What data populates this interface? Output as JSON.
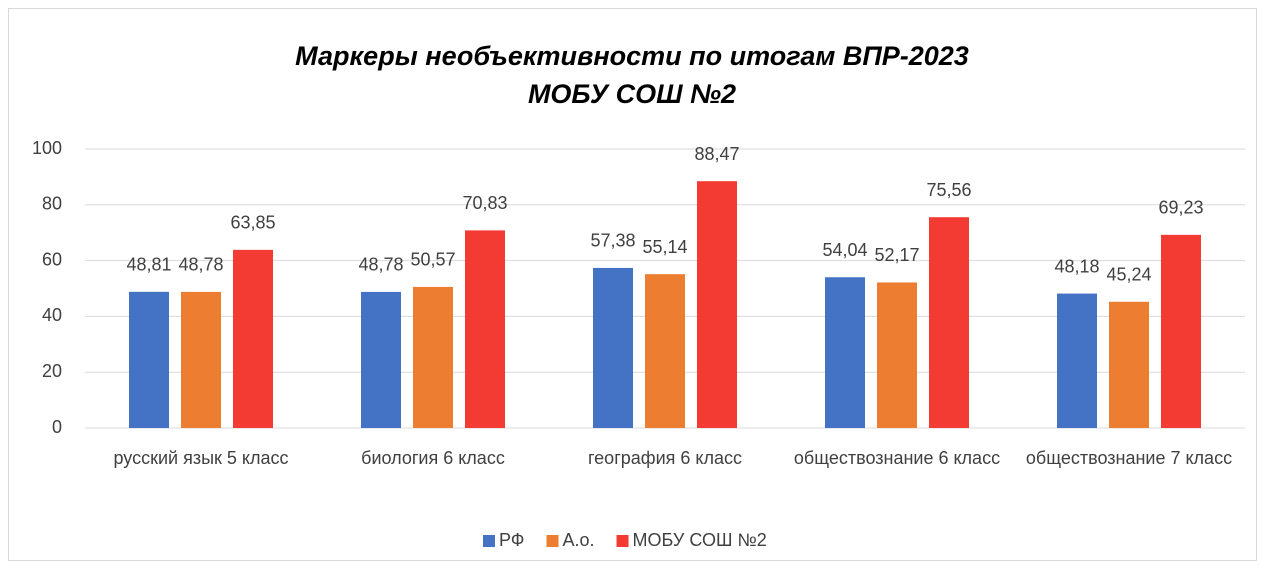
{
  "chart_data": {
    "type": "bar",
    "title": [
      "Маркеры необъективности по итогам ВПР-2023",
      "МОБУ СОШ №2"
    ],
    "categories": [
      "русский язык 5 класс",
      "биология 6 класс",
      "география 6 класс",
      "обществознание 6 класс",
      "обществознание 7 класс"
    ],
    "series": [
      {
        "name": "РФ",
        "color": "#4472c4",
        "values": [
          48.81,
          48.78,
          57.38,
          54.04,
          48.18
        ],
        "value_labels": [
          "48,81",
          "48,78",
          "57,38",
          "54,04",
          "48,18"
        ]
      },
      {
        "name": "А.о.",
        "color": "#ed7d31",
        "values": [
          48.78,
          50.57,
          55.14,
          52.17,
          45.24
        ],
        "value_labels": [
          "48,78",
          "50,57",
          "55,14",
          "52,17",
          "45,24"
        ]
      },
      {
        "name": "МОБУ СОШ №2",
        "color": "#f33b34",
        "values": [
          63.85,
          70.83,
          88.47,
          75.56,
          69.23
        ],
        "value_labels": [
          "63,85",
          "70,83",
          "88,47",
          "75,56",
          "69,23"
        ]
      }
    ],
    "ylim": [
      0,
      100
    ],
    "yticks": [
      0,
      20,
      40,
      60,
      80,
      100
    ],
    "grid": true,
    "legend": "bottom"
  }
}
